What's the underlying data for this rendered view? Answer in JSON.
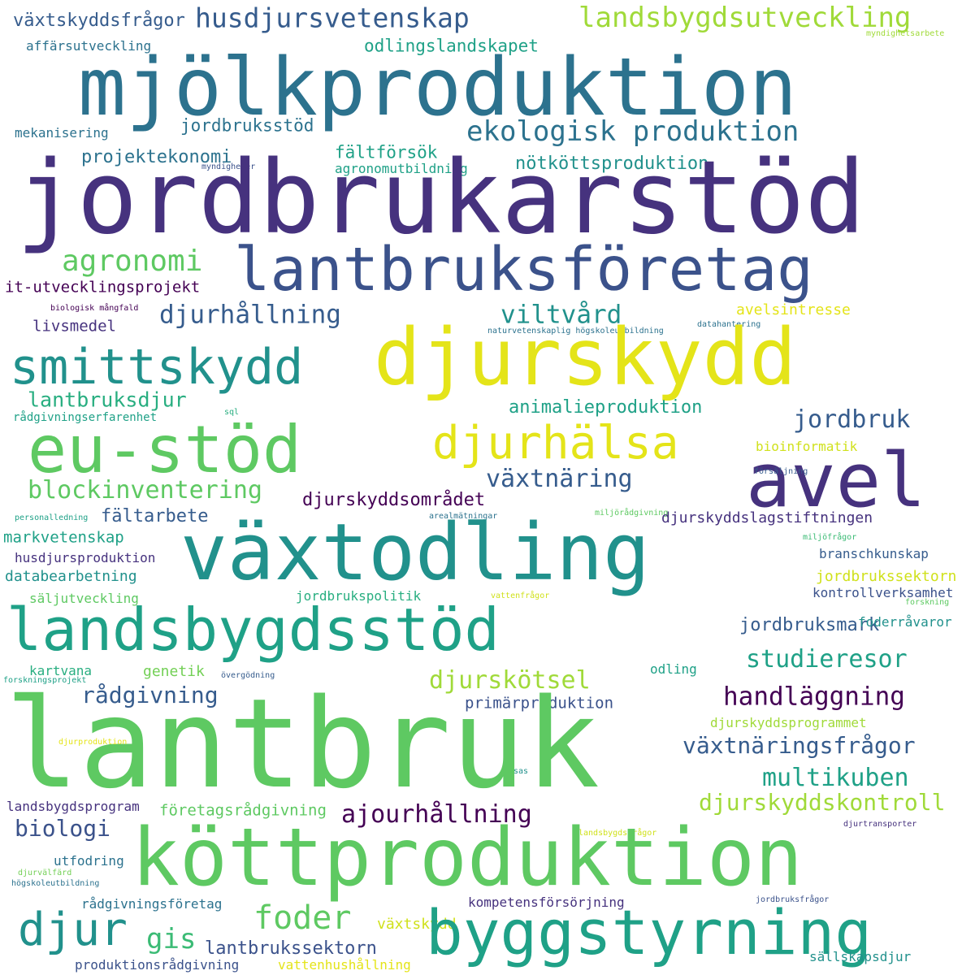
{
  "words": [
    "växtskyddsfrågor",
    "husdjursvetenskap",
    "landsbygdsutveckling",
    "myndighetsarbete",
    "affärsutveckling",
    "odlingslandskapet",
    "mjölkproduktion",
    "mekanisering",
    "jordbruksstöd",
    "ekologisk produktion",
    "projektekonomi",
    "fältförsök",
    "myndigheter",
    "agronomutbildning",
    "nötköttsproduktion",
    "jordbrukarstöd",
    "agronomi",
    "lantbruksföretag",
    "it-utvecklingsprojekt",
    "djurhållning",
    "viltvård",
    "avelsintresse",
    "biologisk mångfald",
    "livsmedel",
    "naturvetenskaplig högskoleutbildning",
    "datahantering",
    "smittskydd",
    "djurskydd",
    "lantbruksdjur",
    "animalieproduktion",
    "rådgivningserfarenhet",
    "sql",
    "jordbruk",
    "eu-stöd",
    "djurhälsa",
    "bioinformatik",
    "avel",
    "försäljning",
    "växtnäring",
    "blockinventering",
    "djurskyddsområdet",
    "fältarbete",
    "personalledning",
    "arealmätningar",
    "miljörådgivning",
    "djurskyddslagstiftningen",
    "växtodling",
    "markvetenskap",
    "miljöfrågor",
    "husdjursproduktion",
    "branschkunskap",
    "databearbetning",
    "jordbrukssektorn",
    "säljutveckling",
    "jordbrukspolitik",
    "vattenfrågor",
    "kontrollverksamhet",
    "forskning",
    "landsbygdsstöd",
    "jordbruksmark",
    "foderråvaror",
    "kartvana",
    "genetik",
    "studieresor",
    "forskningsprojekt",
    "övergödning",
    "odling",
    "djurskötsel",
    "rådgivning",
    "handläggning",
    "primärproduktion",
    "djurskyddsprogrammet",
    "lantbruk",
    "djurproduktion",
    "växtnäringsfrågor",
    "sas",
    "multikuben",
    "landsbygdsprogram",
    "djurskyddskontroll",
    "företagsrådgivning",
    "ajourhållning",
    "landsbygdsfrågor",
    "djurtransporter",
    "biologi",
    "köttproduktion",
    "utfodring",
    "djurvälfärd",
    "högskoleutbildning",
    "rådgivningsföretag",
    "kompetensförsörjning",
    "jordbruksfrågor",
    "djur",
    "foder",
    "växtskydd",
    "byggstyrning",
    "gis",
    "lantbrukssektorn",
    "sällskapsdjur",
    "produktionsrådgivning",
    "vattenhushållning"
  ]
}
